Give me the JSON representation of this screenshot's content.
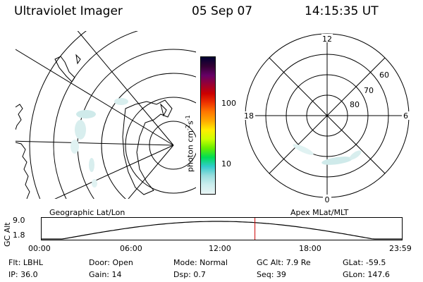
{
  "header": {
    "app_title": "Ultraviolet Imager",
    "date": "05 Sep 07",
    "time": "14:15:35 UT"
  },
  "colorbar": {
    "unit_label": "photon cm",
    "unit_sup1": "-2",
    "unit_mid": "s",
    "unit_sup2": "-1",
    "ticks": [
      "100",
      "10"
    ],
    "colors": [
      "#000033",
      "#330033",
      "#660066",
      "#990033",
      "#cc0000",
      "#ee3300",
      "#ff7700",
      "#ffaa00",
      "#ffee00",
      "#ccff00",
      "#66ee00",
      "#00dd55",
      "#33cccc",
      "#99dddd",
      "#cceeee",
      "#e8f4f4"
    ]
  },
  "geo_panel": {
    "caption": "Geographic Lat/Lon"
  },
  "polar_panel": {
    "caption": "Apex MLat/MLT",
    "mlt_labels": {
      "top": "12",
      "left": "18",
      "right": "6",
      "bottom": "0"
    },
    "mlat_labels": [
      "60",
      "70",
      "80"
    ]
  },
  "orbit_plot": {
    "ylabel": "GC Alt",
    "y_ticks": [
      "9.0",
      "1.8"
    ],
    "x_ticks": [
      "00:00",
      "06:00",
      "12:00",
      "18:00",
      "23:59"
    ],
    "current_time_frac": 0.593,
    "marker_color": "#cc0000"
  },
  "info": {
    "row1": [
      "Flt: LBHL",
      "Door: Open",
      "Mode: Normal",
      "GC Alt: 7.9 Re",
      "GLat: -59.5"
    ],
    "row2": [
      "IP: 36.0",
      "Gain: 14",
      "Dsp: 0.7",
      "Seq: 39",
      "GLon: 147.6"
    ]
  }
}
